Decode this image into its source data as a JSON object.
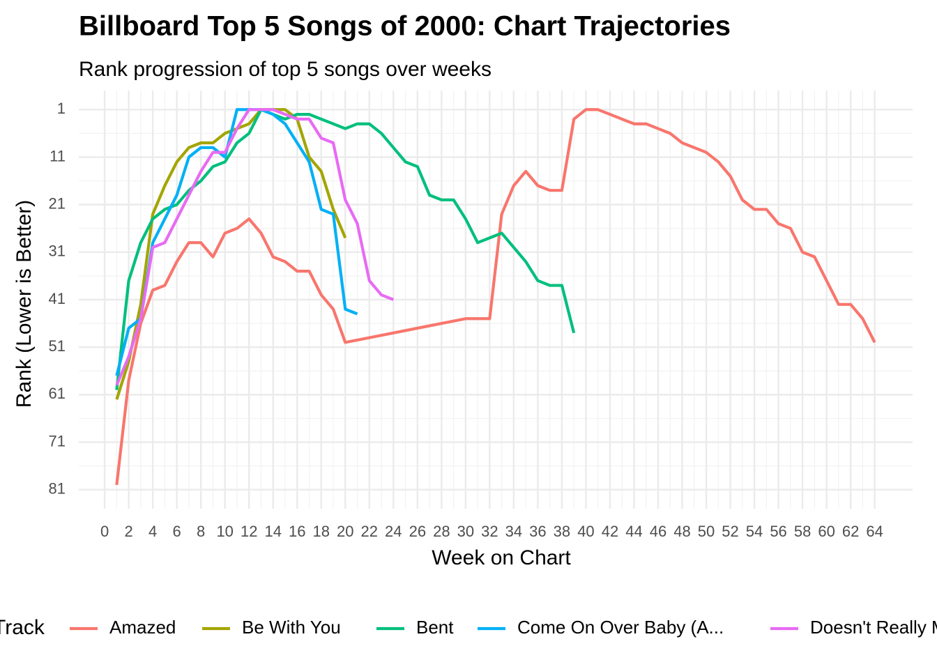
{
  "chart_data": {
    "type": "line",
    "title": "Billboard Top 5 Songs of 2000: Chart Trajectories",
    "subtitle": "Rank progression of top 5 songs over weeks",
    "x_label": "Week on Chart",
    "y_label": "Rank (Lower is Better)",
    "legend_title": "Track",
    "legend_position": "bottom",
    "y_reversed": true,
    "grid": true,
    "xlim": [
      -2.15,
      67.15
    ],
    "ylim": [
      -3,
      85
    ],
    "xticks": [
      0,
      2,
      4,
      6,
      8,
      10,
      12,
      14,
      16,
      18,
      20,
      22,
      24,
      26,
      28,
      30,
      32,
      34,
      36,
      38,
      40,
      42,
      44,
      46,
      48,
      50,
      52,
      54,
      56,
      58,
      60,
      62,
      64
    ],
    "yticks": [
      1,
      11,
      21,
      31,
      41,
      51,
      61,
      71,
      81
    ],
    "series": [
      {
        "name": "Amazed",
        "color": "#F8766D",
        "x": [
          1,
          2,
          3,
          4,
          5,
          6,
          7,
          8,
          9,
          10,
          11,
          12,
          13,
          14,
          15,
          16,
          17,
          18,
          19,
          20,
          30,
          31,
          32,
          33,
          34,
          35,
          36,
          37,
          38,
          39,
          40,
          41,
          42,
          43,
          44,
          45,
          46,
          47,
          48,
          49,
          50,
          51,
          52,
          53,
          54,
          55,
          56,
          57,
          58,
          59,
          60,
          61,
          62,
          63,
          64
        ],
        "values": [
          80,
          58,
          46,
          39,
          38,
          33,
          29,
          29,
          32,
          27,
          26,
          24,
          27,
          32,
          33,
          35,
          35,
          40,
          43,
          50,
          45,
          45,
          45,
          23,
          17,
          14,
          17,
          18,
          18,
          3,
          1,
          1,
          2,
          3,
          4,
          4,
          5,
          6,
          8,
          9,
          10,
          12,
          15,
          20,
          22,
          22,
          25,
          26,
          31,
          32,
          37,
          42,
          42,
          45,
          50
        ]
      },
      {
        "name": "Be With You",
        "color": "#A3A500",
        "x": [
          1,
          2,
          3,
          4,
          5,
          6,
          7,
          8,
          9,
          10,
          11,
          12,
          13,
          14,
          15,
          16,
          17,
          18,
          19,
          20
        ],
        "values": [
          62,
          54,
          42,
          23,
          17,
          12,
          9,
          8,
          8,
          6,
          5,
          4,
          1,
          1,
          1,
          3,
          11,
          14,
          22,
          28
        ]
      },
      {
        "name": "Bent",
        "color": "#00BF7D",
        "x": [
          1,
          2,
          3,
          4,
          5,
          6,
          7,
          8,
          9,
          10,
          11,
          12,
          13,
          14,
          15,
          16,
          17,
          18,
          19,
          20,
          21,
          22,
          23,
          24,
          25,
          26,
          27,
          28,
          29,
          30,
          31,
          32,
          33,
          34,
          35,
          36,
          37,
          38,
          39
        ],
        "values": [
          60,
          37,
          29,
          24,
          22,
          21,
          18,
          16,
          13,
          12,
          8,
          6,
          1,
          2,
          3,
          2,
          2,
          3,
          4,
          5,
          4,
          4,
          6,
          9,
          12,
          13,
          19,
          20,
          20,
          24,
          29,
          28,
          27,
          30,
          33,
          37,
          38,
          38,
          48
        ]
      },
      {
        "name": "Come On Over Baby (A...",
        "color": "#00B0F6",
        "x": [
          1,
          2,
          3,
          4,
          5,
          6,
          7,
          8,
          9,
          10,
          11,
          12,
          13,
          14,
          15,
          16,
          17,
          18,
          19,
          20,
          21
        ],
        "values": [
          57,
          47,
          45,
          29,
          24,
          19,
          11,
          9,
          9,
          11,
          1,
          1,
          1,
          2,
          4,
          8,
          12,
          22,
          23,
          43,
          44
        ]
      },
      {
        "name": "Doesn't Really Matter",
        "color": "#E76BF3",
        "x": [
          1,
          2,
          3,
          4,
          5,
          6,
          7,
          8,
          9,
          10,
          11,
          12,
          13,
          14,
          15,
          16,
          17,
          18,
          19,
          20,
          21,
          22,
          23,
          24
        ],
        "values": [
          59,
          53,
          45,
          30,
          29,
          24,
          19,
          14,
          10,
          10,
          5,
          1,
          1,
          1,
          2,
          3,
          3,
          7,
          8,
          20,
          25,
          37,
          40,
          41
        ]
      }
    ]
  }
}
